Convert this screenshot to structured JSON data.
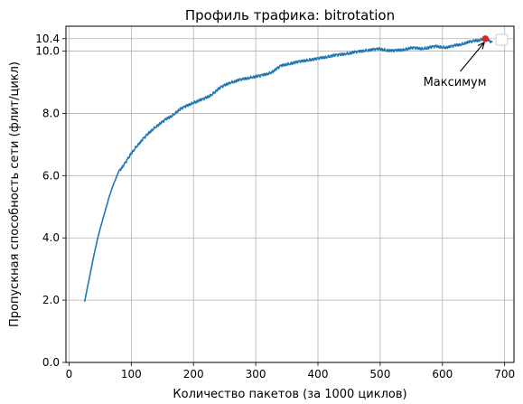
{
  "chart_data": {
    "type": "line",
    "title": "Профиль трафика: bitrotation",
    "xlabel": "Количество пакетов (за 1000 циклов)",
    "ylabel": "Пропускная способность сети (флит/цикл)",
    "xlim": [
      -5,
      715
    ],
    "ylim": [
      0,
      10.8
    ],
    "xticks": [
      0,
      100,
      200,
      300,
      400,
      500,
      600,
      700
    ],
    "xtick_labels": [
      "0",
      "100",
      "200",
      "300",
      "400",
      "500",
      "600",
      "700"
    ],
    "yticks": [
      0,
      2,
      4,
      6,
      8,
      10,
      10.4
    ],
    "ytick_labels": [
      "0.0",
      "2.0",
      "4.0",
      "6.0",
      "8.0",
      "10.0",
      "10.4"
    ],
    "grid": true,
    "legend": "top-right, empty box",
    "series": [
      {
        "color": "#1f77b4",
        "x": [
          25,
          30,
          35,
          40,
          45,
          50,
          55,
          60,
          65,
          70,
          75,
          80,
          85,
          90,
          95,
          100,
          105,
          110,
          115,
          120,
          125,
          130,
          135,
          140,
          145,
          150,
          155,
          160,
          165,
          170,
          175,
          180,
          185,
          190,
          195,
          200,
          205,
          210,
          215,
          220,
          225,
          230,
          235,
          240,
          245,
          250,
          255,
          260,
          265,
          270,
          275,
          280,
          285,
          290,
          295,
          300,
          305,
          310,
          315,
          320,
          325,
          330,
          335,
          340,
          345,
          350,
          355,
          360,
          365,
          370,
          375,
          380,
          385,
          390,
          395,
          400,
          405,
          410,
          415,
          420,
          425,
          430,
          435,
          440,
          445,
          450,
          455,
          460,
          465,
          470,
          475,
          480,
          485,
          490,
          495,
          500,
          505,
          510,
          515,
          520,
          525,
          530,
          535,
          540,
          545,
          550,
          555,
          560,
          565,
          570,
          575,
          580,
          585,
          590,
          595,
          600,
          605,
          610,
          615,
          620,
          625,
          630,
          635,
          640,
          645,
          650,
          655,
          660,
          665,
          670,
          675,
          680
        ],
        "y": [
          1.95,
          2.45,
          2.95,
          3.45,
          3.9,
          4.3,
          4.65,
          5.0,
          5.35,
          5.65,
          5.9,
          6.15,
          6.25,
          6.4,
          6.55,
          6.72,
          6.85,
          6.98,
          7.08,
          7.2,
          7.3,
          7.4,
          7.5,
          7.58,
          7.65,
          7.72,
          7.8,
          7.86,
          7.92,
          8.0,
          8.08,
          8.15,
          8.2,
          8.25,
          8.3,
          8.35,
          8.38,
          8.42,
          8.45,
          8.5,
          8.55,
          8.62,
          8.7,
          8.78,
          8.85,
          8.9,
          8.95,
          9.0,
          9.02,
          9.05,
          9.08,
          9.1,
          9.12,
          9.15,
          9.17,
          9.18,
          9.2,
          9.22,
          9.25,
          9.28,
          9.32,
          9.38,
          9.45,
          9.52,
          9.55,
          9.58,
          9.6,
          9.62,
          9.64,
          9.66,
          9.68,
          9.7,
          9.72,
          9.73,
          9.74,
          9.76,
          9.78,
          9.8,
          9.82,
          9.84,
          9.86,
          9.87,
          9.88,
          9.9,
          9.92,
          9.93,
          9.95,
          9.97,
          9.98,
          10.0,
          10.02,
          10.03,
          10.04,
          10.05,
          10.06,
          10.07,
          10.05,
          10.03,
          10.02,
          10.01,
          10.02,
          10.03,
          10.04,
          10.06,
          10.08,
          10.1,
          10.1,
          10.09,
          10.08,
          10.09,
          10.1,
          10.12,
          10.14,
          10.15,
          10.14,
          10.13,
          10.12,
          10.13,
          10.15,
          10.18,
          10.2,
          10.22,
          10.25,
          10.28,
          10.3,
          10.32,
          10.34,
          10.36,
          10.38,
          10.4,
          10.33,
          10.28
        ],
        "noise": 0.04
      }
    ],
    "max_point": {
      "x": 669,
      "y": 10.4,
      "color": "#d62728"
    },
    "annotations": [
      {
        "text": "Максимум",
        "text_x": 620,
        "text_y": 9.0,
        "arrow_to_x": 669,
        "arrow_to_y": 10.4
      }
    ]
  }
}
